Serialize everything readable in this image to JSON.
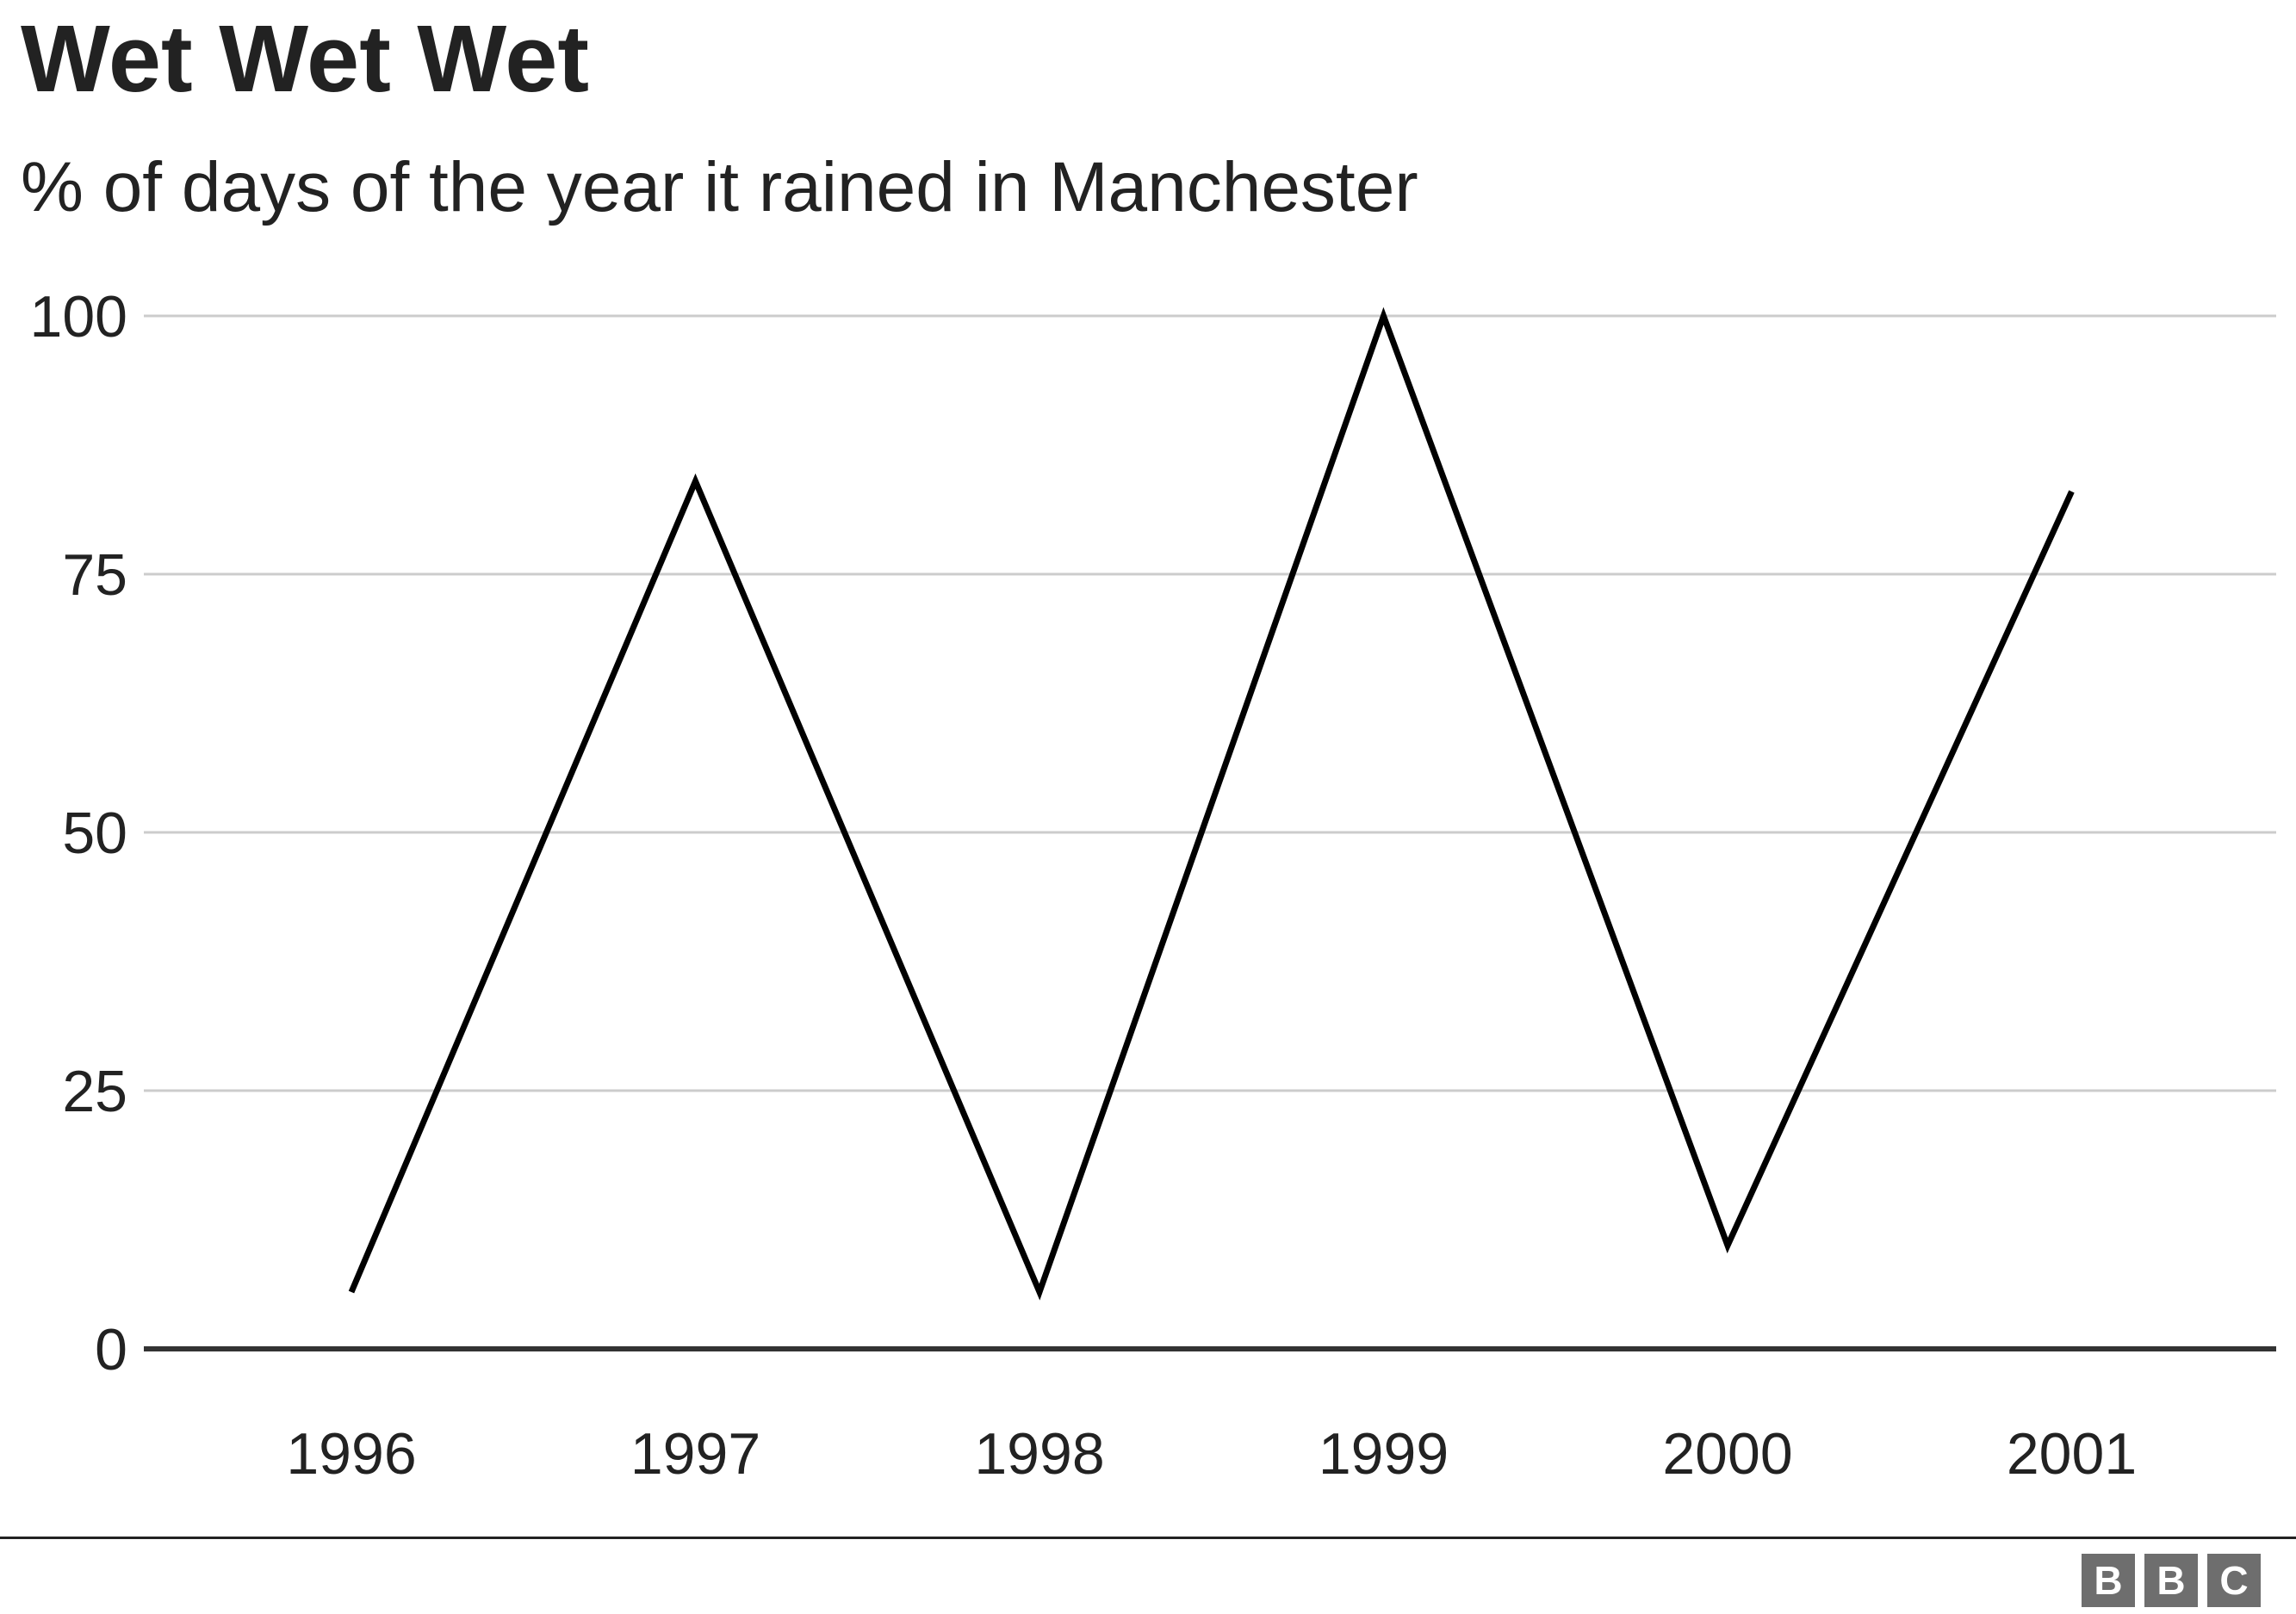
{
  "chart_data": {
    "type": "line",
    "title": "Wet Wet Wet",
    "subtitle": "% of days of the year it rained in Manchester",
    "xlabel": "",
    "ylabel": "",
    "categories": [
      "1996",
      "1997",
      "1998",
      "1999",
      "2000",
      "2001"
    ],
    "series": [
      {
        "values": [
          5.5,
          84,
          5.5,
          100,
          10,
          83
        ]
      }
    ],
    "ylim": [
      0,
      100
    ],
    "yticks": [
      0,
      25,
      50,
      75,
      100
    ],
    "grid": true,
    "legend": "none",
    "colors": {
      "line": "#000000",
      "grid": "#cccccc",
      "baseline": "#333333",
      "text": "#222222"
    }
  },
  "footer": {
    "logo_letters": [
      "B",
      "B",
      "C"
    ]
  }
}
